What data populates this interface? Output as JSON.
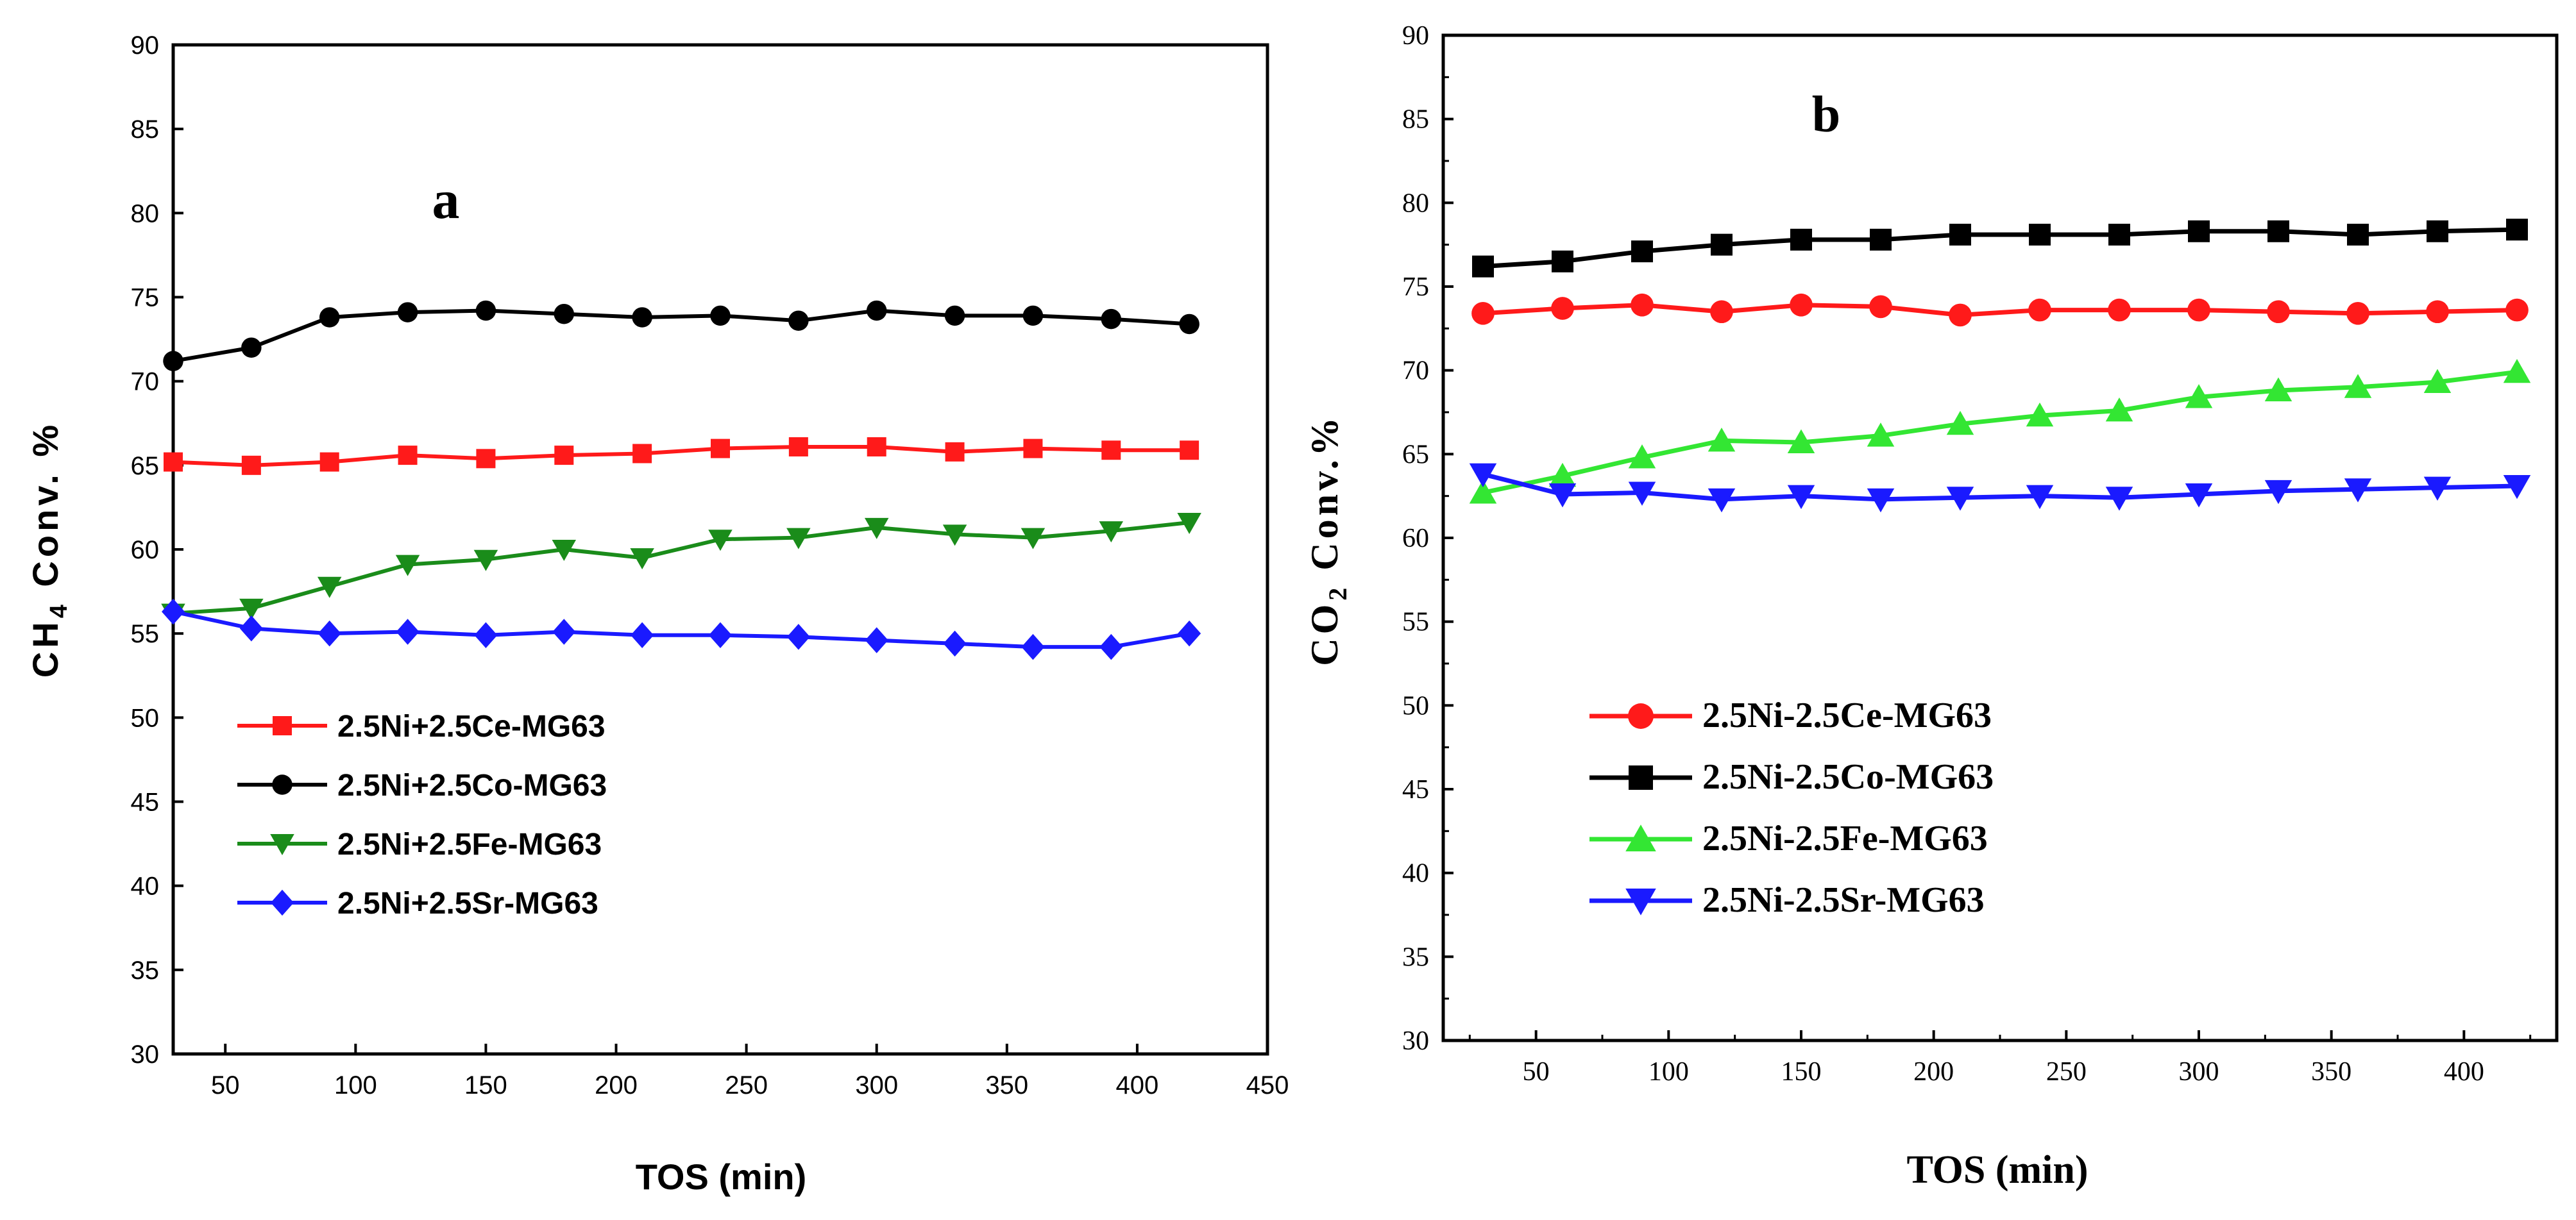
{
  "chart_data": [
    {
      "type": "line",
      "panel_label": "a",
      "title": "",
      "xlabel": "TOS (min)",
      "ylabel": {
        "prefix": "CH",
        "subscript": "4",
        "suffix": " Conv. %"
      },
      "xlim": [
        30,
        450
      ],
      "ylim": [
        30,
        90
      ],
      "xticks": [
        50,
        100,
        150,
        200,
        250,
        300,
        350,
        400,
        450
      ],
      "yticks": [
        30,
        35,
        40,
        45,
        50,
        55,
        60,
        65,
        70,
        75,
        80,
        85,
        90
      ],
      "legend": "lower-left",
      "x": [
        30,
        60,
        90,
        120,
        150,
        180,
        210,
        240,
        270,
        300,
        330,
        360,
        390,
        420
      ],
      "series": [
        {
          "name": "2.5Ni+2.5Ce-MG63",
          "color": "#ff1a1a",
          "marker": "square",
          "values": [
            65.2,
            65.0,
            65.2,
            65.6,
            65.4,
            65.6,
            65.7,
            66.0,
            66.1,
            66.1,
            65.8,
            66.0,
            65.9,
            65.9
          ]
        },
        {
          "name": "2.5Ni+2.5Co-MG63",
          "color": "#000000",
          "marker": "circle",
          "values": [
            71.2,
            72.0,
            73.8,
            74.1,
            74.2,
            74.0,
            73.8,
            73.9,
            73.6,
            74.2,
            73.9,
            73.9,
            73.7,
            73.4
          ]
        },
        {
          "name": "2.5Ni+2.5Fe-MG63",
          "color": "#1a8c1a",
          "marker": "triangle-down",
          "values": [
            56.2,
            56.5,
            57.8,
            59.1,
            59.4,
            60.0,
            59.5,
            60.6,
            60.7,
            61.3,
            60.9,
            60.7,
            61.1,
            61.6
          ]
        },
        {
          "name": "2.5Ni+2.5Sr-MG63",
          "color": "#1a1aff",
          "marker": "diamond",
          "values": [
            56.3,
            55.3,
            55.0,
            55.1,
            54.9,
            55.1,
            54.9,
            54.9,
            54.8,
            54.6,
            54.4,
            54.2,
            54.2,
            55.0
          ]
        }
      ]
    },
    {
      "type": "line",
      "panel_label": "b",
      "title": "",
      "xlabel": "TOS (min)",
      "ylabel": {
        "prefix": "CO",
        "subscript": "2",
        "suffix": " Conv.%"
      },
      "xlim": [
        15,
        435
      ],
      "ylim": [
        30,
        90
      ],
      "xticks": [
        50,
        100,
        150,
        200,
        250,
        300,
        350,
        400
      ],
      "yticks": [
        30,
        35,
        40,
        45,
        50,
        55,
        60,
        65,
        70,
        75,
        80,
        85,
        90
      ],
      "legend": "lower-left",
      "x": [
        30,
        60,
        90,
        120,
        150,
        180,
        210,
        240,
        270,
        300,
        330,
        360,
        390,
        420
      ],
      "series": [
        {
          "name": "2.5Ni-2.5Ce-MG63",
          "color": "#ff1a1a",
          "marker": "circle",
          "values": [
            73.4,
            73.7,
            73.9,
            73.5,
            73.9,
            73.8,
            73.3,
            73.6,
            73.6,
            73.6,
            73.5,
            73.4,
            73.5,
            73.6
          ]
        },
        {
          "name": "2.5Ni-2.5Co-MG63",
          "color": "#000000",
          "marker": "square",
          "values": [
            76.2,
            76.5,
            77.1,
            77.5,
            77.8,
            77.8,
            78.1,
            78.1,
            78.1,
            78.3,
            78.3,
            78.1,
            78.3,
            78.4
          ]
        },
        {
          "name": "2.5Ni-2.5Fe-MG63",
          "color": "#33e633",
          "marker": "triangle-up",
          "values": [
            62.7,
            63.7,
            64.8,
            65.8,
            65.7,
            66.1,
            66.8,
            67.3,
            67.6,
            68.4,
            68.8,
            69.0,
            69.3,
            69.9
          ]
        },
        {
          "name": "2.5Ni-2.5Sr-MG63",
          "color": "#1a1aff",
          "marker": "triangle-down",
          "values": [
            63.8,
            62.6,
            62.7,
            62.3,
            62.5,
            62.3,
            62.4,
            62.5,
            62.4,
            62.6,
            62.8,
            62.9,
            63.0,
            63.1
          ]
        }
      ]
    }
  ]
}
